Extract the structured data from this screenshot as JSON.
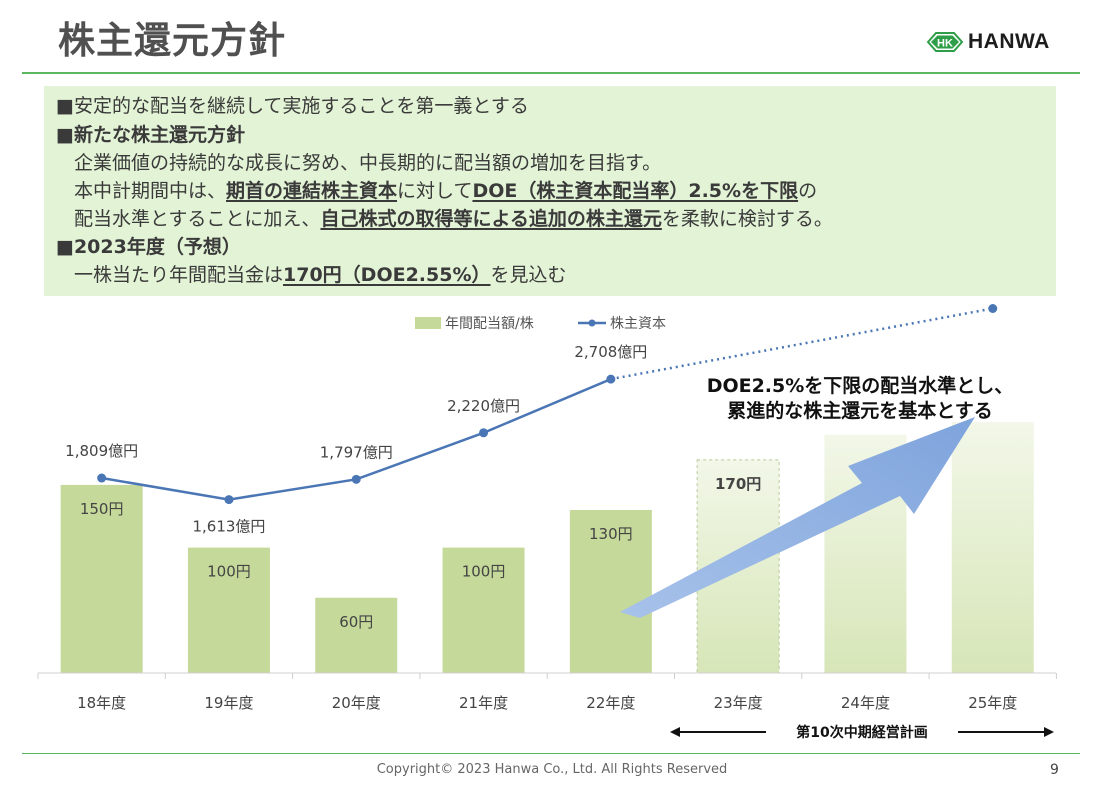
{
  "slide": {
    "title": "株主還元方針",
    "brand": "HANWA",
    "logo_mark": "HK",
    "copyright": "Copyright© 2023 Hanwa Co., Ltd. All Rights Reserved",
    "page_number": "9"
  },
  "policy": {
    "bullet1": "■安定的な配当を継続して実施することを第一義とする",
    "bullet2": "■新たな株主還元方針",
    "line3": "企業価値の持続的な成長に努め、中長期的に配当額の増加を目指す。",
    "line4_a": "本中計期間中は、",
    "line4_b": "期首の連結株主資本",
    "line4_c": "に対して",
    "line4_d": "DOE（株主資本配当率）2.5%を下限",
    "line4_e": "の",
    "line5_a": "配当水準とすることに加え、",
    "line5_b": "自己株式の取得等による追加の株主還元",
    "line5_c": "を柔軟に検討する。",
    "bullet3": "■2023年度（予想）",
    "line7_a": "一株当たり年間配当金は",
    "line7_b": "170円（DOE2.55%）",
    "line7_c": "を見込む"
  },
  "colors": {
    "accent_green": "#5cb85f",
    "panel_bg": "#e3f3d6",
    "bar_actual": "#c5d99a",
    "bar_forecast": "#e0ebc7",
    "line": "#4a76b5",
    "arrow": "#8fb0e0"
  },
  "chart_data": {
    "type": "bar",
    "categories": [
      "18年度",
      "19年度",
      "20年度",
      "21年度",
      "22年度",
      "23年度",
      "24年度",
      "25年度"
    ],
    "series": [
      {
        "name": "年間配当額/株",
        "kind": "bar",
        "values": [
          150,
          100,
          60,
          100,
          130,
          170,
          190,
          200
        ],
        "labels": [
          "150円",
          "100円",
          "60円",
          "100円",
          "130円",
          "170円",
          "",
          ""
        ],
        "forecast_from_index": 5
      },
      {
        "name": "株主資本",
        "kind": "line",
        "values": [
          1809,
          1613,
          1797,
          2220,
          2708,
          null,
          null,
          3350
        ],
        "labels": [
          "1,809億円",
          "1,613億円",
          "1,797億円",
          "2,220億円",
          "2,708億円",
          "",
          "",
          ""
        ],
        "dotted_from_index": 4
      }
    ],
    "annotation": [
      "DOE2.5%を下限の配当水準とし、",
      "累進的な株主還元を基本とする"
    ],
    "plan_label": "第10次中期経営計画",
    "legend_position": "top"
  }
}
